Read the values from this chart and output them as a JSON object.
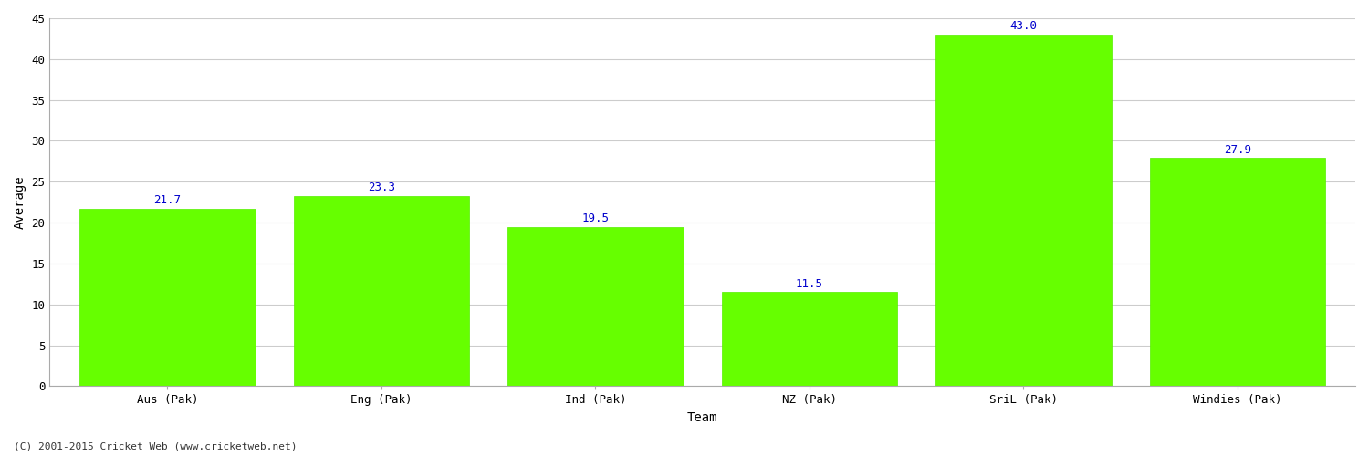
{
  "categories": [
    "Aus (Pak)",
    "Eng (Pak)",
    "Ind (Pak)",
    "NZ (Pak)",
    "SriL (Pak)",
    "Windies (Pak)"
  ],
  "values": [
    21.7,
    23.3,
    19.5,
    11.5,
    43.0,
    27.9
  ],
  "bar_color": "#66ff00",
  "bar_edge_color": "#55ee00",
  "xlabel": "Team",
  "ylabel": "Average",
  "ylim": [
    0,
    45
  ],
  "yticks": [
    0,
    5,
    10,
    15,
    20,
    25,
    30,
    35,
    40,
    45
  ],
  "annotation_color": "#0000cc",
  "annotation_fontsize": 9,
  "grid_color": "#cccccc",
  "background_color": "#ffffff",
  "footer_text": "(C) 2001-2015 Cricket Web (www.cricketweb.net)",
  "footer_fontsize": 8,
  "footer_color": "#333333",
  "axis_label_fontsize": 10,
  "tick_fontsize": 9,
  "bar_width": 0.82
}
